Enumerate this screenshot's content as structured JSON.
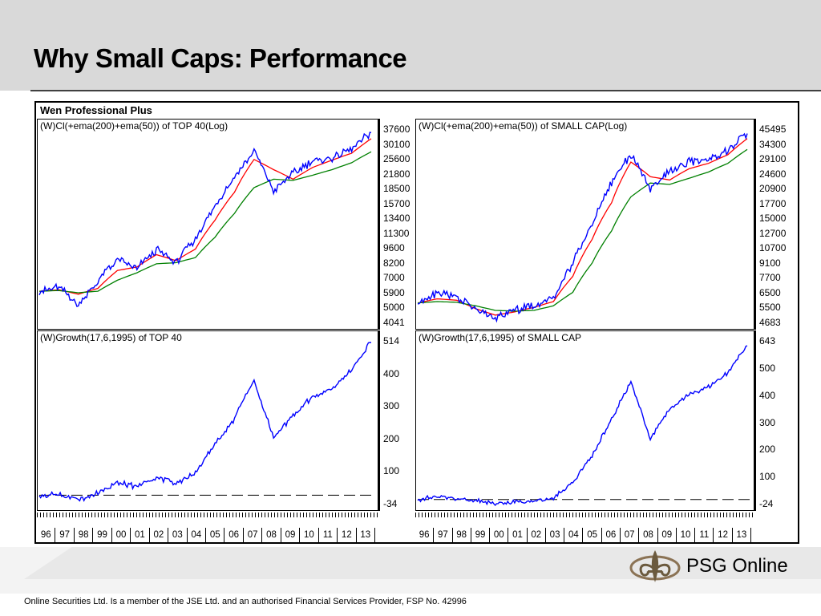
{
  "slide": {
    "title": "Why Small Caps: Performance",
    "footer": "Online Securities Ltd. Is a member of the JSE Ltd. and an authorised Financial Services Provider, FSP No. 42996",
    "logo_text": "PSG Online"
  },
  "app_title": "Wen Professional Plus",
  "years": [
    "96",
    "97",
    "98",
    "99",
    "00",
    "01",
    "02",
    "03",
    "04",
    "05",
    "06",
    "07",
    "08",
    "09",
    "10",
    "11",
    "12",
    "13"
  ],
  "colors": {
    "price": "#0000ff",
    "ema50": "#ff0000",
    "ema200": "#008000",
    "baseline": "#000000"
  },
  "chart_data": [
    {
      "type": "line",
      "title": "(W)Cl(+ema(200)+ema(50)) of TOP 40(Log)",
      "y_scale": "log",
      "y_ticks": [
        "37600",
        "30100",
        "25600",
        "21800",
        "18500",
        "15700",
        "13400",
        "11300",
        "9600",
        "8200",
        "7000",
        "5900",
        "5000",
        "4041"
      ],
      "ylim": [
        4041,
        37600
      ],
      "x": [
        1996,
        1997,
        1998,
        1999,
        2000,
        2001,
        2002,
        2003,
        2004,
        2005,
        2006,
        2007,
        2008,
        2009,
        2010,
        2011,
        2012,
        2013
      ],
      "series": [
        {
          "key": "price",
          "values": [
            5900,
            6200,
            5000,
            6600,
            8500,
            7600,
            9600,
            8200,
            10700,
            15700,
            21800,
            29500,
            18500,
            23000,
            26500,
            27500,
            30500,
            36800
          ]
        },
        {
          "key": "ema50",
          "values": [
            5900,
            6000,
            5700,
            6100,
            7500,
            7800,
            9000,
            8400,
            9600,
            13400,
            18500,
            27000,
            24000,
            21500,
            24600,
            26800,
            29000,
            34300
          ]
        },
        {
          "key": "ema200",
          "values": [
            5900,
            5950,
            5800,
            5900,
            6700,
            7300,
            8100,
            8200,
            8700,
            11000,
            14500,
            19500,
            21500,
            21200,
            22500,
            24000,
            26000,
            29500
          ]
        }
      ]
    },
    {
      "type": "line",
      "title": "(W)Cl(+ema(200)+ema(50)) of SMALL CAP(Log)",
      "y_scale": "log",
      "y_ticks": [
        "45495",
        "34300",
        "29100",
        "24600",
        "20900",
        "17700",
        "15000",
        "12700",
        "10700",
        "9100",
        "7700",
        "6500",
        "5500",
        "4683"
      ],
      "ylim": [
        4683,
        45495
      ],
      "x": [
        1996,
        1997,
        1998,
        1999,
        2000,
        2001,
        2002,
        2003,
        2004,
        2005,
        2006,
        2007,
        2008,
        2009,
        2010,
        2011,
        2012,
        2013
      ],
      "series": [
        {
          "key": "price",
          "values": [
            6000,
            6800,
            6500,
            5500,
            5000,
            5500,
            5800,
            6300,
            9500,
            15000,
            24600,
            34300,
            23000,
            28500,
            31500,
            32500,
            36000,
            44000
          ]
        },
        {
          "key": "ema50",
          "values": [
            6000,
            6300,
            6200,
            5600,
            5200,
            5400,
            5700,
            6100,
            8200,
            12700,
            19500,
            31500,
            26500,
            25500,
            29100,
            31000,
            34300,
            41500
          ]
        },
        {
          "key": "ema200",
          "values": [
            6000,
            6100,
            6050,
            5800,
            5500,
            5450,
            5500,
            5800,
            6800,
            9600,
            14000,
            20900,
            24600,
            24200,
            26000,
            28000,
            31000,
            36500
          ]
        }
      ]
    },
    {
      "type": "line",
      "title": "(W)Growth(17,6,1995) of TOP 40",
      "y_ticks": [
        "514",
        "400",
        "300",
        "200",
        "100",
        "-34"
      ],
      "ylim": [
        -34,
        514
      ],
      "x": [
        1996,
        1997,
        1998,
        1999,
        2000,
        2001,
        2002,
        2003,
        2004,
        2005,
        2006,
        2007,
        2008,
        2009,
        2010,
        2011,
        2012,
        2013
      ],
      "series": [
        {
          "key": "price",
          "values": [
            0,
            5,
            -15,
            10,
            40,
            30,
            60,
            40,
            80,
            170,
            260,
            390,
            190,
            270,
            330,
            360,
            420,
            520
          ]
        }
      ],
      "baseline": 0
    },
    {
      "type": "line",
      "title": "(W)Growth(17,6,1995) of SMALL CAP",
      "y_ticks": [
        "643",
        "500",
        "400",
        "300",
        "200",
        "100",
        "-24"
      ],
      "ylim": [
        -24,
        643
      ],
      "x": [
        1996,
        1997,
        1998,
        1999,
        2000,
        2001,
        2002,
        2003,
        2004,
        2005,
        2006,
        2007,
        2008,
        2009,
        2010,
        2011,
        2012,
        2013
      ],
      "series": [
        {
          "key": "price",
          "values": [
            0,
            10,
            5,
            -5,
            -15,
            -10,
            -5,
            5,
            70,
            180,
            330,
            480,
            250,
            370,
            430,
            460,
            520,
            630
          ]
        }
      ],
      "baseline": 0
    }
  ]
}
